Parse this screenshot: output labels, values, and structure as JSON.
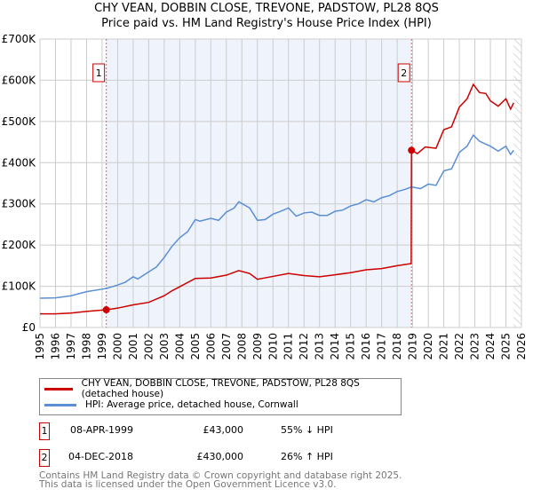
{
  "chart_data": {
    "type": "line",
    "title": "CHY VEAN, DOBBIN CLOSE, TREVONE, PADSTOW, PL28 8QS",
    "subtitle": "Price paid vs. HM Land Registry's House Price Index (HPI)",
    "xlim": [
      1995,
      2026
    ],
    "ylim": [
      0,
      700000
    ],
    "x_ticks": [
      "1995",
      "1996",
      "1997",
      "1998",
      "1999",
      "2000",
      "2001",
      "2002",
      "2003",
      "2004",
      "2005",
      "2006",
      "2007",
      "2008",
      "2009",
      "2010",
      "2011",
      "2012",
      "2013",
      "2014",
      "2015",
      "2016",
      "2017",
      "2018",
      "2019",
      "2020",
      "2021",
      "2022",
      "2023",
      "2024",
      "2025",
      "2026"
    ],
    "y_ticks": [
      {
        "v": 0,
        "l": "£0"
      },
      {
        "v": 100000,
        "l": "£100K"
      },
      {
        "v": 200000,
        "l": "£200K"
      },
      {
        "v": 300000,
        "l": "£300K"
      },
      {
        "v": 400000,
        "l": "£400K"
      },
      {
        "v": 500000,
        "l": "£500K"
      },
      {
        "v": 600000,
        "l": "£600K"
      },
      {
        "v": 700000,
        "l": "£700K"
      }
    ],
    "grid": true,
    "shaded_range": [
      1999.27,
      2018.92
    ],
    "hatched_from": 2025.5,
    "series": [
      {
        "name": "CHY VEAN, DOBBIN CLOSE, TREVONE, PADSTOW, PL28 8QS (detached house)",
        "color": "#cc0000",
        "x": [
          1995,
          1996,
          1997,
          1998,
          1999.27,
          2000,
          2001,
          2002,
          2003,
          2003.5,
          2004,
          2005,
          2006,
          2007,
          2007.8,
          2008.5,
          2009,
          2010,
          2011,
          2012,
          2013,
          2014,
          2015,
          2016,
          2017,
          2018,
          2018.9,
          2018.92,
          2019.3,
          2019.8,
          2020.5,
          2021,
          2021.5,
          2022,
          2022.5,
          2022.9,
          2023.3,
          2023.7,
          2024,
          2024.5,
          2025,
          2025.3,
          2025.5
        ],
        "y": [
          33000,
          33000,
          35000,
          39000,
          43000,
          47000,
          55000,
          61000,
          77000,
          89000,
          99000,
          119000,
          120000,
          127000,
          138000,
          131000,
          117000,
          124000,
          131000,
          126000,
          123000,
          128000,
          133000,
          140000,
          143000,
          150000,
          155000,
          430000,
          422000,
          438000,
          435000,
          480000,
          487000,
          535000,
          555000,
          590000,
          570000,
          568000,
          550000,
          537000,
          555000,
          530000,
          545000
        ]
      },
      {
        "name": "HPI: Average price, detached house, Cornwall",
        "color": "#5b8fd4",
        "x": [
          1995,
          1996,
          1997,
          1998,
          1999,
          1999.3,
          2000,
          2000.5,
          2001,
          2001.3,
          2002,
          2002.5,
          2003,
          2003.5,
          2004,
          2004.5,
          2005,
          2005.3,
          2006,
          2006.5,
          2007,
          2007.5,
          2007.8,
          2008.5,
          2009,
          2009.5,
          2010,
          2010.5,
          2011,
          2011.5,
          2012,
          2012.5,
          2013,
          2013.5,
          2014,
          2014.5,
          2015,
          2015.5,
          2016,
          2016.5,
          2017,
          2017.5,
          2018,
          2018.5,
          2018.92,
          2019.5,
          2020,
          2020.5,
          2021,
          2021.5,
          2022,
          2022.5,
          2022.9,
          2023.3,
          2023.7,
          2024,
          2024.5,
          2025,
          2025.3,
          2025.5
        ],
        "y": [
          71000,
          72000,
          77000,
          87000,
          93000,
          95000,
          103000,
          110000,
          123000,
          118000,
          135000,
          147000,
          170000,
          197000,
          218000,
          232000,
          262000,
          258000,
          265000,
          260000,
          280000,
          290000,
          305000,
          290000,
          260000,
          262000,
          275000,
          282000,
          290000,
          270000,
          278000,
          280000,
          272000,
          272000,
          282000,
          285000,
          295000,
          300000,
          310000,
          305000,
          315000,
          320000,
          330000,
          335000,
          341000,
          337000,
          348000,
          345000,
          380000,
          385000,
          425000,
          440000,
          467000,
          452000,
          445000,
          440000,
          428000,
          440000,
          420000,
          430000
        ]
      }
    ],
    "sales": [
      {
        "label": "1",
        "x": 1999.27,
        "y": 43000
      },
      {
        "label": "2",
        "x": 2018.92,
        "y": 430000
      }
    ]
  },
  "legend": {
    "property": "CHY VEAN, DOBBIN CLOSE, TREVONE, PADSTOW, PL28 8QS (detached house)",
    "hpi": "HPI: Average price, detached house, Cornwall"
  },
  "transactions": [
    {
      "num": "1",
      "date": "08-APR-1999",
      "price": "£43,000",
      "hpi": "55% ↓ HPI"
    },
    {
      "num": "2",
      "date": "04-DEC-2018",
      "price": "£430,000",
      "hpi": "26% ↑ HPI"
    }
  ],
  "footer": {
    "line1": "Contains HM Land Registry data © Crown copyright and database right 2025.",
    "line2": "This data is licensed under the Open Government Licence v3.0."
  }
}
